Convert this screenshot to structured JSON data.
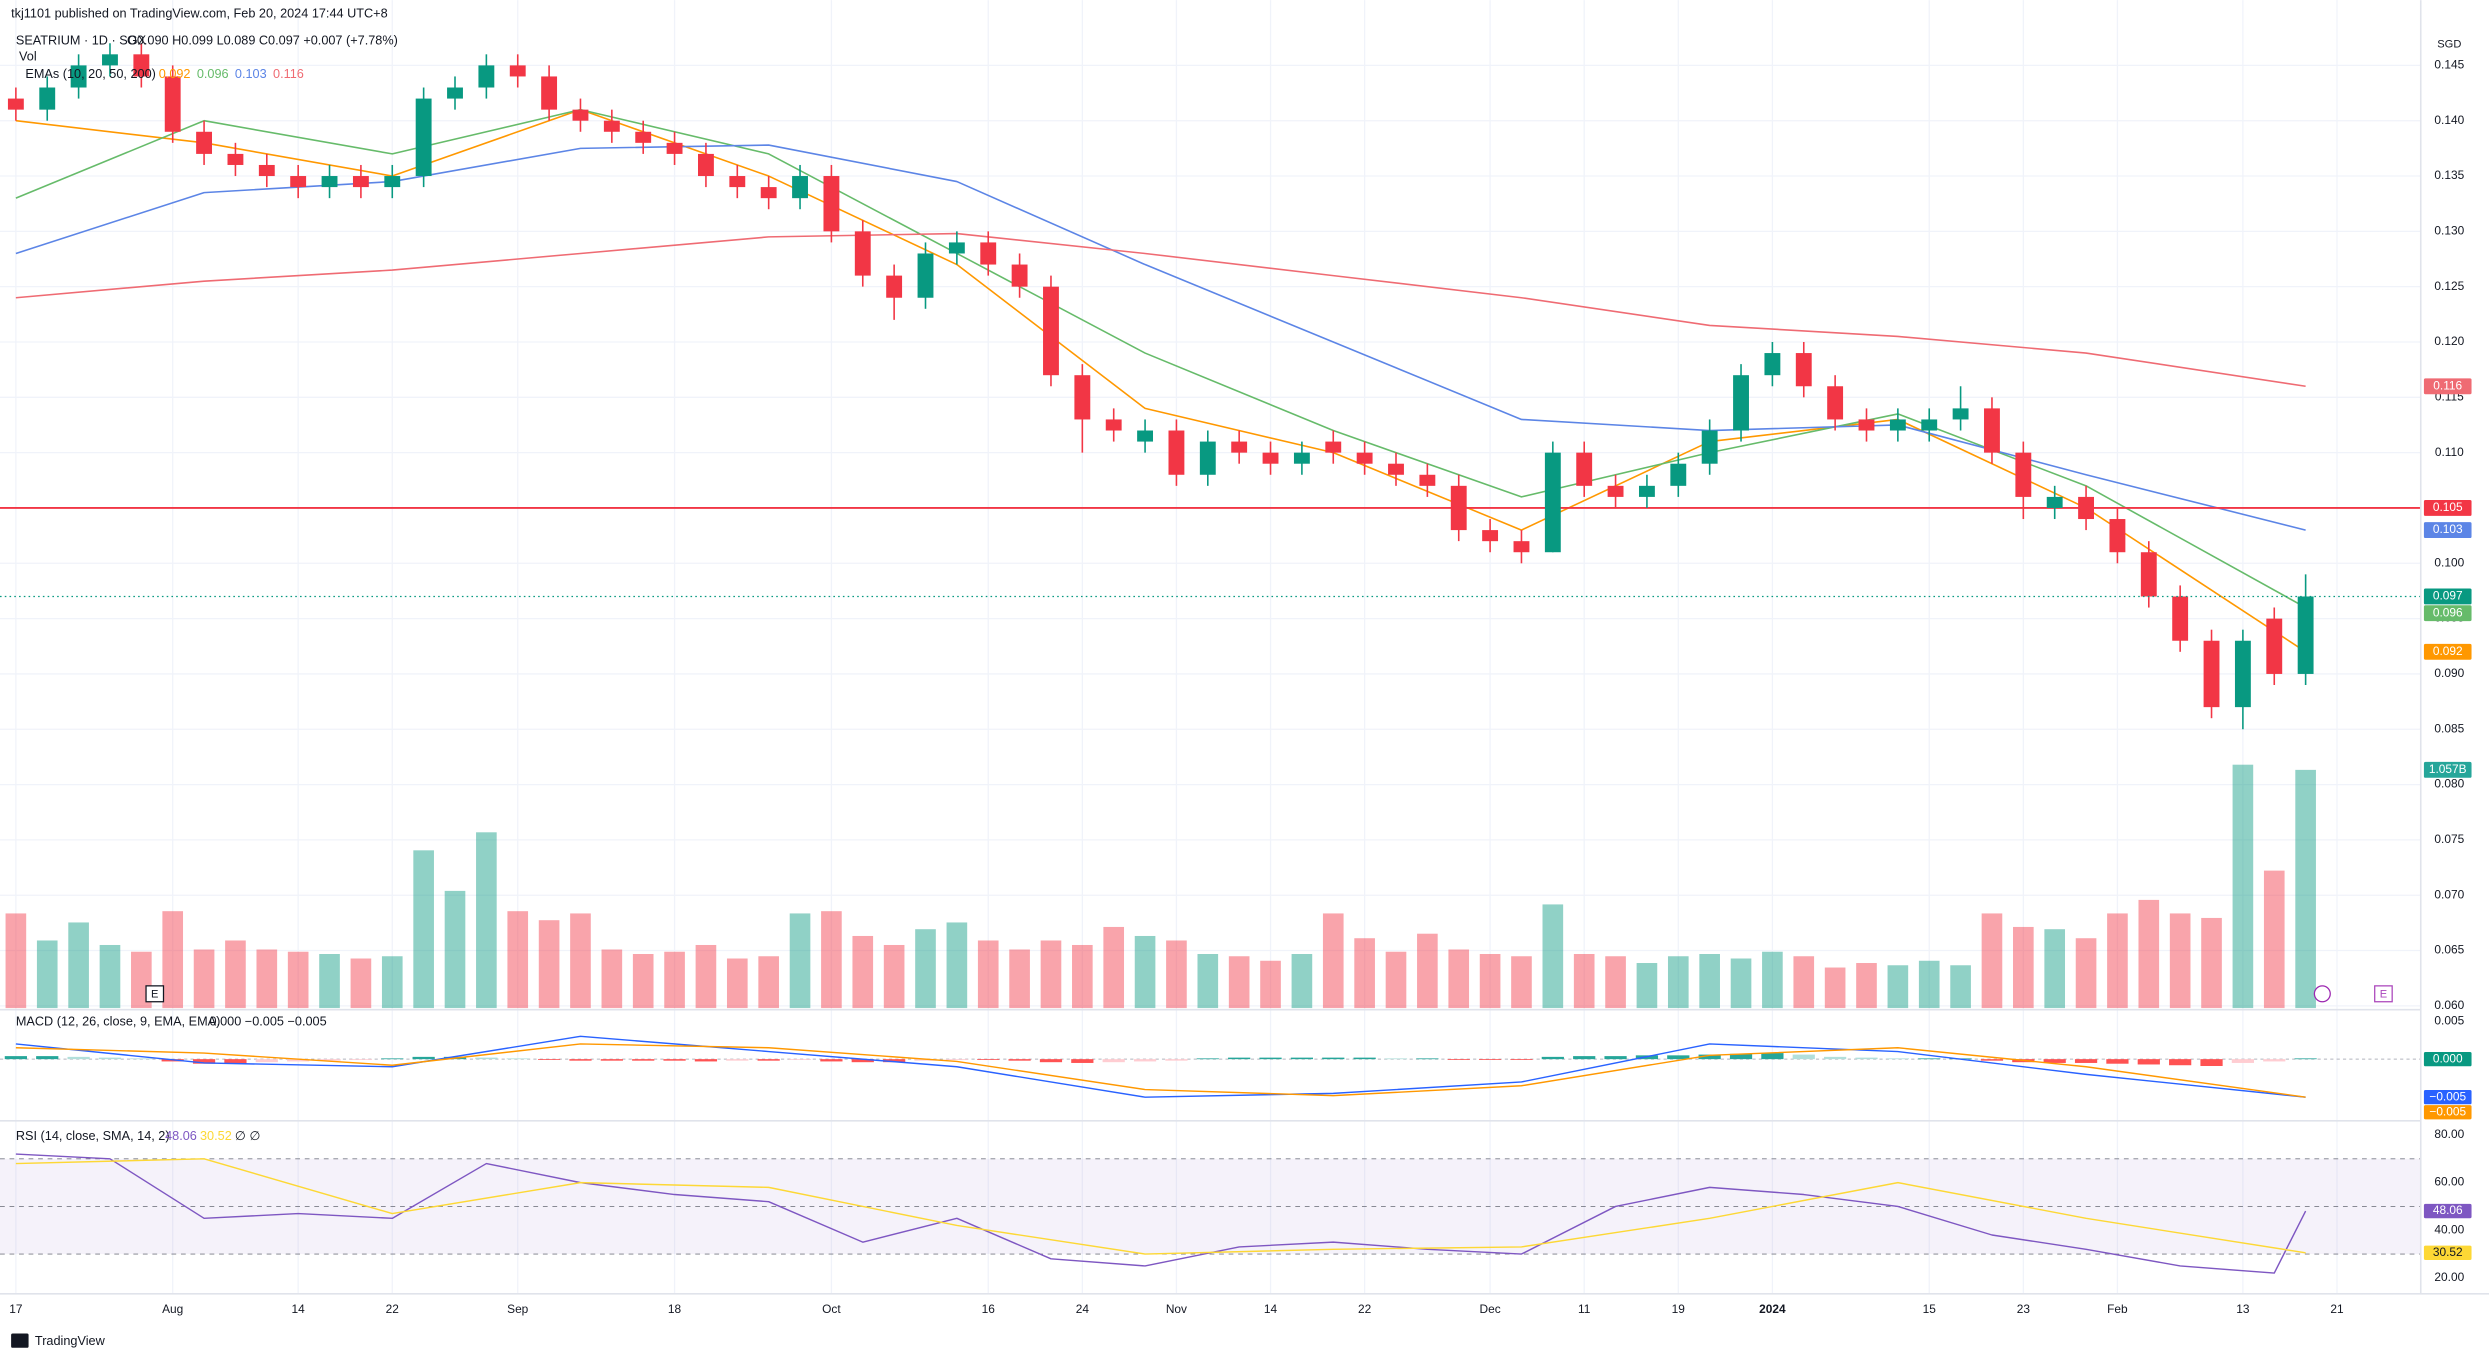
{
  "header": {
    "publisher": "tkj1101 published on TradingView.com, Feb 20, 2024 17:44 UTC+8",
    "symbol": "SEATRIUM · 1D · SGX",
    "ohlc": "O0.090 H0.099 L0.089 C0.097 +0.007 (+7.78%)",
    "vol": "Vol",
    "volume_tag": "1.057B",
    "emas": "EMAs (10, 20, 50, 200)",
    "currency": "SGD",
    "footer": "TradingView"
  },
  "chart_data": {
    "type": "candlestick",
    "categories": [
      "17",
      null,
      null,
      null,
      null,
      "Aug",
      null,
      null,
      null,
      "14",
      null,
      null,
      "22",
      null,
      null,
      null,
      "Sep",
      null,
      null,
      null,
      null,
      "18",
      null,
      null,
      null,
      null,
      "Oct",
      null,
      null,
      null,
      null,
      "16",
      null,
      null,
      "24",
      null,
      null,
      "Nov",
      null,
      null,
      "14",
      null,
      null,
      "22",
      null,
      null,
      null,
      "Dec",
      null,
      null,
      "11",
      null,
      null,
      "19",
      null,
      null,
      "2024",
      null,
      null,
      null,
      null,
      "15",
      null,
      null,
      "23",
      null,
      null,
      "Feb",
      null,
      null,
      null,
      "13",
      null,
      null,
      "21"
    ],
    "open": [
      0.142,
      0.141,
      0.143,
      0.145,
      0.146,
      0.144,
      0.139,
      0.137,
      0.136,
      0.135,
      0.134,
      0.135,
      0.134,
      0.135,
      0.142,
      0.143,
      0.145,
      0.144,
      0.141,
      0.14,
      0.139,
      0.138,
      0.137,
      0.135,
      0.134,
      0.133,
      0.135,
      0.13,
      0.126,
      0.124,
      0.128,
      0.129,
      0.127,
      0.125,
      0.117,
      0.113,
      0.111,
      0.112,
      0.108,
      0.111,
      0.11,
      0.109,
      0.111,
      0.11,
      0.109,
      0.108,
      0.107,
      0.103,
      0.102,
      0.101,
      0.11,
      0.107,
      0.106,
      0.107,
      0.109,
      0.112,
      0.117,
      0.119,
      0.116,
      0.113,
      0.112,
      0.112,
      0.113,
      0.114,
      0.11,
      0.105,
      0.106,
      0.104,
      0.101,
      0.097,
      0.093,
      0.087,
      0.095,
      0.09,
      null
    ],
    "high": [
      0.143,
      0.144,
      0.146,
      0.147,
      0.147,
      0.145,
      0.14,
      0.138,
      0.137,
      0.136,
      0.136,
      0.136,
      0.136,
      0.143,
      0.144,
      0.146,
      0.146,
      0.145,
      0.142,
      0.141,
      0.14,
      0.139,
      0.138,
      0.136,
      0.135,
      0.136,
      0.136,
      0.131,
      0.127,
      0.129,
      0.13,
      0.13,
      0.128,
      0.126,
      0.118,
      0.114,
      0.113,
      0.113,
      0.112,
      0.112,
      0.111,
      0.111,
      0.112,
      0.111,
      0.11,
      0.109,
      0.108,
      0.104,
      0.103,
      0.111,
      0.111,
      0.108,
      0.108,
      0.11,
      0.113,
      0.118,
      0.12,
      0.12,
      0.117,
      0.114,
      0.114,
      0.114,
      0.116,
      0.115,
      0.111,
      0.107,
      0.107,
      0.105,
      0.102,
      0.098,
      0.094,
      0.094,
      0.096,
      0.099,
      null
    ],
    "low": [
      0.14,
      0.14,
      0.142,
      0.144,
      0.143,
      0.138,
      0.136,
      0.135,
      0.134,
      0.133,
      0.133,
      0.133,
      0.133,
      0.134,
      0.141,
      0.142,
      0.143,
      0.14,
      0.139,
      0.138,
      0.137,
      0.136,
      0.134,
      0.133,
      0.132,
      0.132,
      0.129,
      0.125,
      0.122,
      0.123,
      0.127,
      0.126,
      0.124,
      0.116,
      0.11,
      0.111,
      0.11,
      0.107,
      0.107,
      0.109,
      0.108,
      0.108,
      0.109,
      0.108,
      0.107,
      0.106,
      0.102,
      0.101,
      0.1,
      0.101,
      0.106,
      0.105,
      0.105,
      0.106,
      0.108,
      0.111,
      0.116,
      0.115,
      0.112,
      0.111,
      0.111,
      0.111,
      0.112,
      0.109,
      0.104,
      0.104,
      0.103,
      0.1,
      0.096,
      0.092,
      0.086,
      0.085,
      0.089,
      0.089,
      null
    ],
    "close": [
      0.141,
      0.143,
      0.145,
      0.146,
      0.144,
      0.139,
      0.137,
      0.136,
      0.135,
      0.134,
      0.135,
      0.134,
      0.135,
      0.142,
      0.143,
      0.145,
      0.144,
      0.141,
      0.14,
      0.139,
      0.138,
      0.137,
      0.135,
      0.134,
      0.133,
      0.135,
      0.13,
      0.126,
      0.124,
      0.128,
      0.129,
      0.127,
      0.125,
      0.117,
      0.113,
      0.112,
      0.112,
      0.108,
      0.111,
      0.11,
      0.109,
      0.11,
      0.11,
      0.109,
      0.108,
      0.107,
      0.103,
      0.102,
      0.101,
      0.11,
      0.107,
      0.106,
      0.107,
      0.109,
      0.112,
      0.117,
      0.119,
      0.116,
      0.113,
      0.112,
      0.113,
      0.113,
      0.114,
      0.11,
      0.106,
      0.106,
      0.104,
      0.101,
      0.097,
      0.093,
      0.087,
      0.093,
      0.09,
      0.097,
      null
    ],
    "volume": [
      420000000,
      300000000,
      380000000,
      280000000,
      250000000,
      430000000,
      260000000,
      300000000,
      260000000,
      250000000,
      240000000,
      220000000,
      230000000,
      700000000,
      520000000,
      780000000,
      430000000,
      390000000,
      420000000,
      260000000,
      240000000,
      250000000,
      280000000,
      220000000,
      230000000,
      420000000,
      430000000,
      320000000,
      280000000,
      350000000,
      380000000,
      300000000,
      260000000,
      300000000,
      280000000,
      360000000,
      320000000,
      300000000,
      240000000,
      230000000,
      210000000,
      240000000,
      420000000,
      310000000,
      250000000,
      330000000,
      260000000,
      240000000,
      230000000,
      460000000,
      240000000,
      230000000,
      200000000,
      230000000,
      240000000,
      220000000,
      250000000,
      230000000,
      180000000,
      200000000,
      190000000,
      210000000,
      190000000,
      420000000,
      360000000,
      350000000,
      310000000,
      420000000,
      480000000,
      420000000,
      400000000,
      1080000000,
      610000000,
      1057000000,
      null
    ],
    "vlim": [
      0,
      1620000000
    ],
    "up_color": "#089981",
    "down_color": "#f23645",
    "ylim": [
      0.0598,
      0.1509
    ],
    "yticks": [
      {
        "value": 0.06,
        "label": "0.060"
      },
      0.065,
      {
        "value": 0.07,
        "label": "0.070"
      },
      0.075,
      {
        "value": 0.08,
        "label": "0.080"
      },
      0.085,
      {
        "value": 0.09,
        "label": "0.090"
      },
      0.095,
      {
        "value": 0.1,
        "label": "0.100"
      },
      0.105,
      {
        "value": 0.11,
        "label": "0.110"
      },
      0.115,
      {
        "value": 0.12,
        "label": "0.120"
      },
      0.125,
      {
        "value": 0.13,
        "label": "0.130"
      },
      0.135,
      {
        "value": 0.14,
        "label": "0.140"
      },
      0.145
    ],
    "grid": true,
    "hline": {
      "value": 0.105,
      "color": "#f23645"
    },
    "series": [
      {
        "name": "EMA 10",
        "color": "#ff9800",
        "x": [
          0,
          6,
          12,
          18,
          24,
          30,
          36,
          42,
          48,
          54,
          60,
          66,
          73
        ],
        "values": [
          0.14,
          0.138,
          0.135,
          0.141,
          0.135,
          0.127,
          0.114,
          0.11,
          0.103,
          0.111,
          0.113,
          0.105,
          0.092
        ]
      },
      {
        "name": "EMA 20",
        "color": "#66bb6a",
        "x": [
          0,
          6,
          12,
          18,
          24,
          30,
          36,
          42,
          48,
          54,
          60,
          66,
          73
        ],
        "values": [
          0.133,
          0.14,
          0.137,
          0.141,
          0.137,
          0.128,
          0.119,
          0.112,
          0.106,
          0.11,
          0.1135,
          0.107,
          0.096
        ]
      },
      {
        "name": "EMA 50",
        "color": "#5c85e6",
        "x": [
          0,
          6,
          12,
          18,
          24,
          30,
          36,
          42,
          48,
          54,
          60,
          66,
          73
        ],
        "values": [
          0.128,
          0.1335,
          0.1345,
          0.1375,
          0.1378,
          0.1345,
          0.127,
          0.12,
          0.113,
          0.112,
          0.1125,
          0.108,
          0.103
        ]
      },
      {
        "name": "EMA 200",
        "color": "#ef6b73",
        "x": [
          0,
          6,
          12,
          18,
          24,
          30,
          36,
          42,
          48,
          54,
          60,
          66,
          73
        ],
        "values": [
          0.124,
          0.1255,
          0.1265,
          0.128,
          0.1295,
          0.1298,
          0.128,
          0.126,
          0.124,
          0.1215,
          0.1205,
          0.119,
          0.116
        ]
      }
    ],
    "macd": {
      "title": "MACD (12, 26, close, 9, EMA, EMA)",
      "values_text": "0.000  −0.005  −0.005",
      "ylim": [
        -0.0079,
        0.0063
      ],
      "yticks": [
        0.005
      ],
      "hist": [
        0.0004,
        0.0004,
        0.0003,
        0.0002,
        0.0001,
        -0.0003,
        -0.0006,
        -0.0006,
        -0.0004,
        -0.0003,
        -0.0002,
        -0.0001,
        0.0001,
        0.0003,
        0.0003,
        0.0002,
        0.0001,
        -0.0001,
        -0.0002,
        -0.0002,
        -0.0002,
        -0.0002,
        -0.0003,
        -0.0002,
        -0.0002,
        -0.0001,
        -0.0003,
        -0.0004,
        -0.0004,
        -0.0002,
        -0.0001,
        -0.0001,
        -0.0002,
        -0.0004,
        -0.0005,
        -0.0004,
        -0.0003,
        -0.0002,
        0.0001,
        0.0002,
        0.0002,
        0.0002,
        0.0002,
        0.0002,
        0.0001,
        0.0001,
        -0.0001,
        -0.0001,
        -0.0001,
        0.0003,
        0.0004,
        0.0004,
        0.0005,
        0.0005,
        0.0006,
        0.0007,
        0.0008,
        0.0006,
        0.0003,
        0.0002,
        0.0001,
        0.0001,
        0.0001,
        -0.0002,
        -0.0004,
        -0.0005,
        -0.0005,
        -0.0006,
        -0.0007,
        -0.0008,
        -0.0009,
        -0.0005,
        -0.0003,
        0.0001,
        null
      ],
      "lines": [
        {
          "name": "MACD",
          "color": "#2962ff",
          "x": [
            0,
            6,
            12,
            18,
            24,
            30,
            36,
            42,
            48,
            54,
            60,
            66,
            73
          ],
          "values": [
            0.002,
            -0.0005,
            -0.001,
            0.003,
            0.001,
            -0.001,
            -0.005,
            -0.0045,
            -0.003,
            0.002,
            0.001,
            -0.002,
            -0.005
          ]
        },
        {
          "name": "Signal",
          "color": "#ff9800",
          "x": [
            0,
            6,
            12,
            18,
            24,
            30,
            36,
            42,
            48,
            54,
            60,
            66,
            73
          ],
          "values": [
            0.0015,
            0.0008,
            -0.0008,
            0.002,
            0.0015,
            -0.0003,
            -0.004,
            -0.0048,
            -0.0035,
            0.0005,
            0.0015,
            -0.001,
            -0.005
          ]
        }
      ],
      "tags": [
        {
          "value": 0,
          "label": "0.000",
          "color": "#089981"
        },
        {
          "value": -0.005,
          "label": "−0.005",
          "color": "#2962ff"
        },
        {
          "value": -0.005,
          "label": "−0.005",
          "color": "#ff9800"
        }
      ]
    },
    "rsi": {
      "title": "RSI (14, close, SMA, 14, 2)",
      "suffix": "∅  ∅",
      "ylim": [
        13.3,
        85.3
      ],
      "yticks": [
        {
          "value": 80,
          "label": "80.00"
        },
        {
          "value": 60,
          "label": "60.00"
        },
        {
          "value": 40,
          "label": "40.00"
        },
        {
          "value": 20,
          "label": "20.00"
        }
      ],
      "bands": [
        70,
        50,
        30
      ],
      "lines": [
        {
          "name": "RSI",
          "color": "#7e57c2",
          "x": [
            0,
            3,
            6,
            9,
            12,
            15,
            18,
            21,
            24,
            27,
            30,
            33,
            36,
            39,
            42,
            45,
            48,
            51,
            54,
            57,
            60,
            63,
            66,
            69,
            72,
            73
          ],
          "values": [
            72,
            70,
            45,
            47,
            45,
            68,
            60,
            55,
            52,
            35,
            45,
            28,
            25,
            33,
            35,
            32,
            30,
            50,
            58,
            55,
            50,
            38,
            32,
            25,
            22,
            48.06
          ]
        },
        {
          "name": "RSI-based MA",
          "color": "#fdd835",
          "x": [
            0,
            6,
            12,
            18,
            24,
            30,
            36,
            42,
            48,
            54,
            60,
            66,
            73
          ],
          "values": [
            68,
            70,
            47,
            60,
            58,
            42,
            30,
            32,
            33,
            45,
            60,
            45,
            30.52
          ]
        }
      ]
    }
  }
}
